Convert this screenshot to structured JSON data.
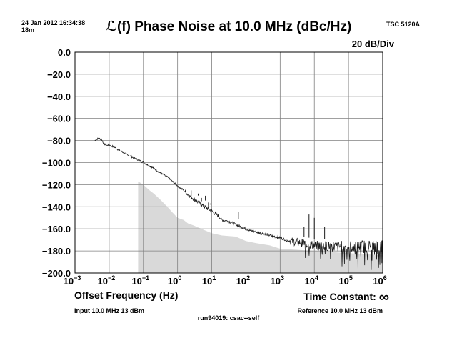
{
  "header": {
    "timestamp": "24 Jan 2012 16:34:38",
    "duration": "18m",
    "instrument": "TSC 5120A"
  },
  "footer": {
    "input": "Input 10.0 MHz 13 dBm",
    "reference": "Reference 10.0 MHz 13 dBm",
    "run": "run94019: csac--self",
    "time_constant_label": "Time Constant:",
    "time_constant_value": "∞"
  },
  "chart_data": {
    "type": "line",
    "title": "ℒ(f) Phase Noise at 10.0 MHz (dBc/Hz)",
    "scale_label": "20 dB/Div",
    "xlabel": "Offset Frequency (Hz)",
    "ylabel": "",
    "x_scale": "log",
    "xlim": [
      0.001,
      1000000
    ],
    "ylim": [
      -200,
      0
    ],
    "x_tick_exponents": [
      -3,
      -2,
      -1,
      0,
      1,
      2,
      3,
      4,
      5,
      6
    ],
    "y_ticks": [
      "0.0",
      "−20.0",
      "−40.0",
      "−60.0",
      "−80.0",
      "−100.0",
      "−120.0",
      "−140.0",
      "−160.0",
      "−180.0",
      "−200.0"
    ],
    "grid": true,
    "series": [
      {
        "role": "measured phase noise",
        "color": "#1a1a1a",
        "x": [
          0.0038,
          0.0048,
          0.006,
          0.007,
          0.0085,
          0.01,
          0.012,
          0.015,
          0.02,
          0.03,
          0.05,
          0.07,
          0.1,
          0.15,
          0.2,
          0.3,
          0.5,
          0.7,
          1,
          1.5,
          2,
          3,
          5,
          7,
          10,
          15,
          20,
          30,
          50,
          70,
          100,
          150,
          200,
          300,
          500,
          700,
          1000,
          1500,
          2000,
          3000,
          5000,
          7000,
          10000,
          20000,
          50000,
          100000,
          200000,
          500000,
          1000000
        ],
        "y": [
          -80,
          -78,
          -79,
          -83,
          -84.5,
          -84,
          -85,
          -86.5,
          -89,
          -92,
          -95.5,
          -97.5,
          -100,
          -103,
          -105,
          -109,
          -113,
          -117,
          -121,
          -125,
          -129,
          -133,
          -138,
          -141,
          -144,
          -148,
          -152,
          -153,
          -156,
          -158,
          -160,
          -162,
          -163,
          -164,
          -166,
          -167,
          -168,
          -170,
          -171,
          -172,
          -173,
          -174,
          -175,
          -175.5,
          -176,
          -176,
          -176,
          -176,
          -176
        ]
      },
      {
        "role": "measurement floor",
        "color": "#d9d9d9",
        "x": [
          0.07,
          0.1,
          0.15,
          0.2,
          0.3,
          0.5,
          0.7,
          1,
          1.5,
          2,
          3,
          5,
          10,
          20,
          50,
          100,
          200,
          500,
          1000,
          10000,
          100000,
          1000000
        ],
        "y": [
          -117,
          -120,
          -125,
          -128,
          -133,
          -140,
          -145,
          -150,
          -152,
          -155,
          -157,
          -160,
          -164,
          -166,
          -167,
          -171,
          -173,
          -175,
          -178,
          -180,
          -182,
          -184
        ]
      }
    ],
    "spurs": [
      {
        "x": 2.5,
        "y": -130
      },
      {
        "x": 3,
        "y": -135
      },
      {
        "x": 4,
        "y": -128
      },
      {
        "x": 5,
        "y": -135
      },
      {
        "x": 6.5,
        "y": -130
      },
      {
        "x": 8,
        "y": -140
      },
      {
        "x": 9,
        "y": -138
      },
      {
        "x": 60,
        "y": -145
      },
      {
        "x": 5000,
        "y": -158
      },
      {
        "x": 7000,
        "y": -147
      },
      {
        "x": 10000,
        "y": -150
      },
      {
        "x": 20000,
        "y": -158
      }
    ]
  }
}
